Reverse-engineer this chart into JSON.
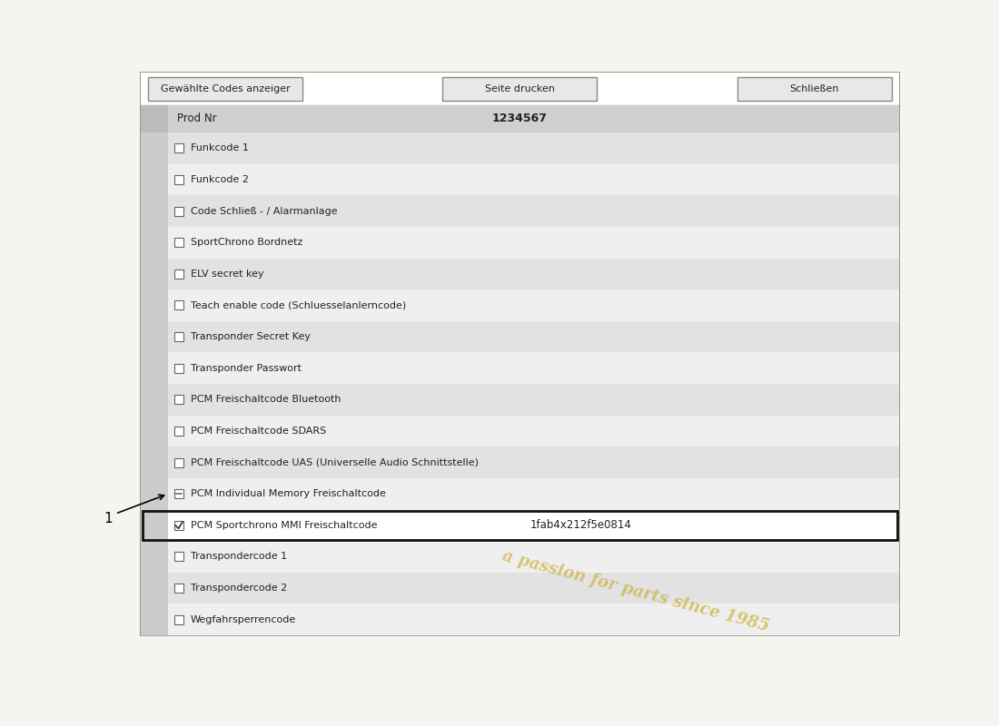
{
  "fig_bg": "#f5f5f0",
  "dialog_bg": "#ffffff",
  "dialog_border": "#999999",
  "header_bg": "#d0d0d0",
  "row_even_bg": "#e2e2e2",
  "row_odd_bg": "#efefef",
  "highlighted_row_bg": "#ffffff",
  "highlighted_row_border": "#111111",
  "button_bg": "#e8e8e8",
  "button_border": "#888888",
  "text_color": "#222222",
  "buttons": [
    "Gewählte Codes anzeiger",
    "Seite drucken",
    "Schließen"
  ],
  "prod_nr_label": "Prod Nr",
  "prod_nr_value": "1234567",
  "rows": [
    {
      "label": "Funkcode 1",
      "checked": false,
      "value": ""
    },
    {
      "label": "Funkcode 2",
      "checked": false,
      "value": ""
    },
    {
      "label": "Code Schließ - / Alarmanlage",
      "checked": false,
      "value": ""
    },
    {
      "label": "SportChrono Bordnetz",
      "checked": false,
      "value": ""
    },
    {
      "label": "ELV secret key",
      "checked": false,
      "value": ""
    },
    {
      "label": "Teach enable code (Schluesselanlerncode)",
      "checked": false,
      "value": ""
    },
    {
      "label": "Transponder Secret Key",
      "checked": false,
      "value": ""
    },
    {
      "label": "Transponder Passwort",
      "checked": false,
      "value": ""
    },
    {
      "label": "PCM Freischaltcode Bluetooth",
      "checked": false,
      "value": ""
    },
    {
      "label": "PCM Freischaltcode SDARS",
      "checked": false,
      "value": ""
    },
    {
      "label": "PCM Freischaltcode UAS (Universelle Audio Schnittstelle)",
      "checked": false,
      "value": ""
    },
    {
      "label": "PCM Individual Memory Freischaltcode",
      "checked": false,
      "value": "",
      "partial_checked": true
    },
    {
      "label": "PCM Sportchrono MMI Freischaltcode",
      "checked": true,
      "value": "1fab4x212f5e0814",
      "highlighted": true
    },
    {
      "label": "Transpondercode 1",
      "checked": false,
      "value": ""
    },
    {
      "label": "Transpondercode 2",
      "checked": false,
      "value": ""
    },
    {
      "label": "Wegfahrsperrencode",
      "checked": false,
      "value": ""
    }
  ],
  "annotation_number": "1",
  "annotation_row_index": 11,
  "watermark_line1": "a passion for parts since 1985"
}
